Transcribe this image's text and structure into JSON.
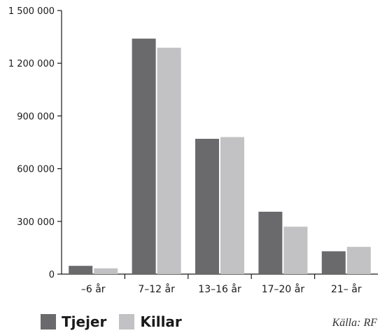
{
  "chart_data": {
    "type": "bar",
    "categories": [
      "–6 år",
      "7–12 år",
      "13–16 år",
      "17–20 år",
      "21– år"
    ],
    "series": [
      {
        "name": "Tjejer",
        "color": "#6a6a6d",
        "values": [
          47000,
          1340000,
          770000,
          355000,
          130000
        ]
      },
      {
        "name": "Killar",
        "color": "#c2c2c4",
        "values": [
          33000,
          1288000,
          780000,
          270000,
          155000
        ]
      }
    ],
    "y_ticks": [
      0,
      300000,
      600000,
      900000,
      1200000,
      1500000
    ],
    "y_tick_labels": [
      "0",
      "300 000",
      "600 000",
      "900 000",
      "1 200 000",
      "1 500 000"
    ],
    "ylim": [
      0,
      1500000
    ],
    "grid": false,
    "legend_position": "bottom-left"
  },
  "legend": {
    "items": [
      {
        "label": "Tjejer",
        "color": "#6a6a6d"
      },
      {
        "label": "Killar",
        "color": "#c2c2c4"
      }
    ]
  },
  "source_label": "Källa: RF"
}
